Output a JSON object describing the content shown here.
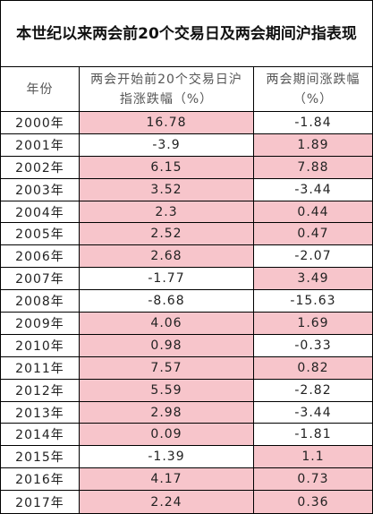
{
  "title": "本世纪以来两会前20个交易日及两会期间沪指表现",
  "table": {
    "header": [
      "年份",
      "两会开始前20个交易日沪指涨跌幅（%）",
      "两会期间涨跌幅（%）"
    ],
    "rows": [
      [
        "2000年",
        16.78,
        -1.84
      ],
      [
        "2001年",
        -3.9,
        1.89
      ],
      [
        "2002年",
        6.15,
        7.88
      ],
      [
        "2003年",
        3.52,
        -3.44
      ],
      [
        "2004年",
        2.3,
        0.44
      ],
      [
        "2005年",
        2.52,
        0.47
      ],
      [
        "2006年",
        2.68,
        -2.07
      ],
      [
        "2007年",
        -1.77,
        3.49
      ],
      [
        "2008年",
        -8.68,
        -15.63
      ],
      [
        "2009年",
        4.06,
        1.69
      ],
      [
        "2010年",
        0.98,
        -0.33
      ],
      [
        "2011年",
        7.57,
        0.82
      ],
      [
        "2012年",
        5.59,
        -2.82
      ],
      [
        "2013年",
        2.98,
        -3.44
      ],
      [
        "2014年",
        0.09,
        -1.81
      ],
      [
        "2015年",
        -1.39,
        1.1
      ],
      [
        "2016年",
        4.17,
        0.73
      ],
      [
        "2017年",
        2.24,
        0.36
      ]
    ],
    "positive_color": "#f7c5cb"
  }
}
